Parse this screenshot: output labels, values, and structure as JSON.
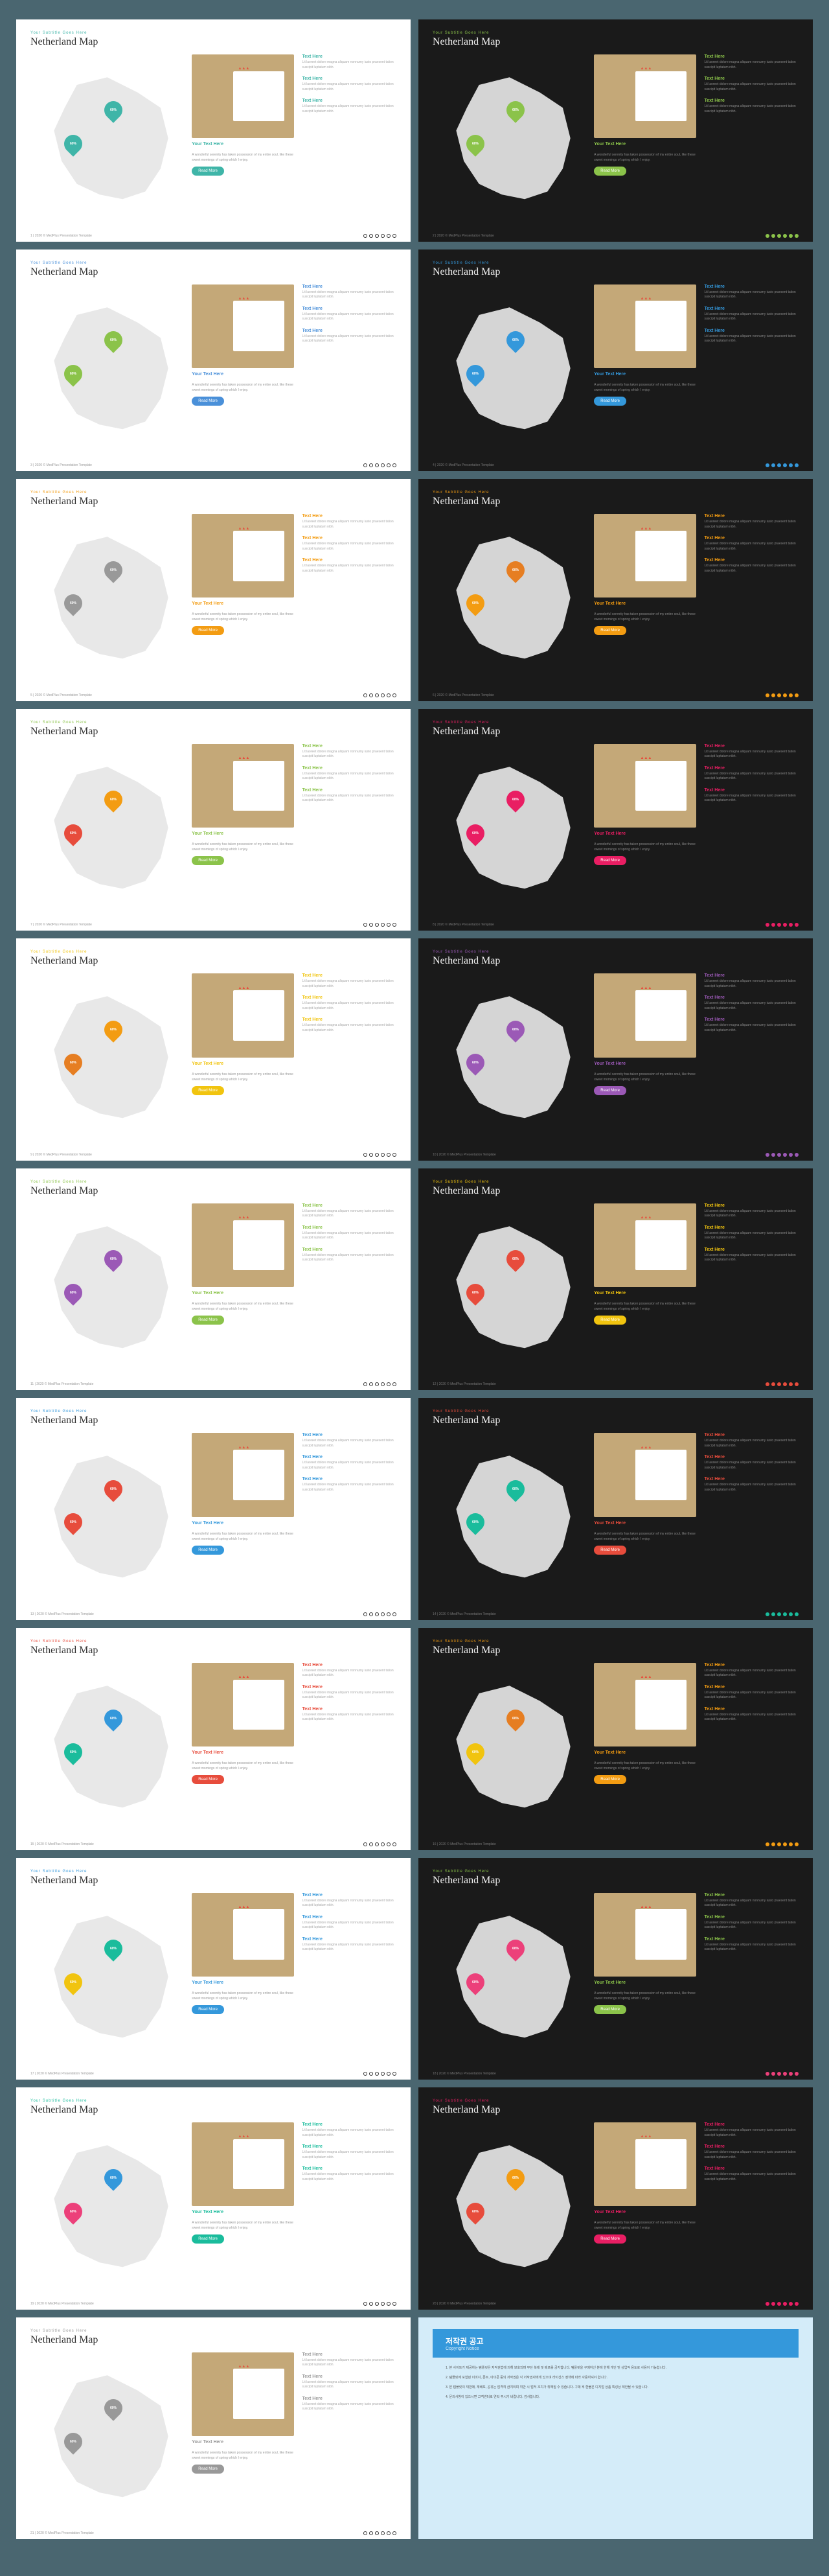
{
  "common": {
    "subtitle": "Your Subtitle Goes Here",
    "title": "Netherland Map",
    "pin_text": "60%",
    "your_text": "Your Text Here",
    "middle_desc": "A wonderful serenity has taken possession of my entire soul, like these sweet mornings of spring which I enjoy.",
    "btn_label": "Read More",
    "text_heading": "Text Here",
    "text_body": "Lit laoreet dolore magna aliquam nonnumy iusto praesent tation suscipit luptatum nibh.",
    "footer_left": "2020 © MedPlus Presentation Template"
  },
  "slides": [
    {
      "bg": "light",
      "accent": "#3fb5a8",
      "pin1": "#3fb5a8",
      "pin2": "#3fb5a8",
      "dots": "#333333"
    },
    {
      "bg": "dark",
      "accent": "#8bc34a",
      "pin1": "#8bc34a",
      "pin2": "#8bc34a",
      "dots": "#8bc34a"
    },
    {
      "bg": "light",
      "accent": "#4a90d9",
      "pin1": "#8bc34a",
      "pin2": "#8bc34a",
      "dots": "#333333"
    },
    {
      "bg": "dark",
      "accent": "#3498db",
      "pin1": "#3498db",
      "pin2": "#3498db",
      "dots": "#3498db"
    },
    {
      "bg": "light",
      "accent": "#f39c12",
      "pin1": "#999999",
      "pin2": "#999999",
      "dots": "#333333"
    },
    {
      "bg": "dark",
      "accent": "#f39c12",
      "pin1": "#f39c12",
      "pin2": "#e67e22",
      "dots": "#f39c12"
    },
    {
      "bg": "light",
      "accent": "#8bc34a",
      "pin1": "#e74c3c",
      "pin2": "#f39c12",
      "dots": "#333333"
    },
    {
      "bg": "dark",
      "accent": "#e91e63",
      "pin1": "#e91e63",
      "pin2": "#e91e63",
      "dots": "#e91e63"
    },
    {
      "bg": "light",
      "accent": "#f1c40f",
      "pin1": "#e67e22",
      "pin2": "#f39c12",
      "dots": "#333333"
    },
    {
      "bg": "dark",
      "accent": "#9b59b6",
      "pin1": "#9b59b6",
      "pin2": "#9b59b6",
      "dots": "#9b59b6"
    },
    {
      "bg": "light",
      "accent": "#8bc34a",
      "pin1": "#9b59b6",
      "pin2": "#9b59b6",
      "dots": "#333333"
    },
    {
      "bg": "dark",
      "accent": "#f1c40f",
      "pin1": "#e74c3c",
      "pin2": "#e74c3c",
      "dots": "#e74c3c"
    },
    {
      "bg": "light",
      "accent": "#3498db",
      "pin1": "#e74c3c",
      "pin2": "#e74c3c",
      "dots": "#333333"
    },
    {
      "bg": "dark",
      "accent": "#e74c3c",
      "pin1": "#1abc9c",
      "pin2": "#1abc9c",
      "dots": "#1abc9c"
    },
    {
      "bg": "light",
      "accent": "#e74c3c",
      "pin1": "#1abc9c",
      "pin2": "#3498db",
      "dots": "#333333"
    },
    {
      "bg": "dark",
      "accent": "#f39c12",
      "pin1": "#f1c40f",
      "pin2": "#e67e22",
      "dots": "#f39c12"
    },
    {
      "bg": "light",
      "accent": "#3498db",
      "pin1": "#f1c40f",
      "pin2": "#1abc9c",
      "dots": "#333333"
    },
    {
      "bg": "dark",
      "accent": "#8bc34a",
      "pin1": "#ec407a",
      "pin2": "#ec407a",
      "dots": "#ec407a"
    },
    {
      "bg": "light",
      "accent": "#1abc9c",
      "pin1": "#ec407a",
      "pin2": "#3498db",
      "dots": "#333333"
    },
    {
      "bg": "dark",
      "accent": "#e91e63",
      "pin1": "#e74c3c",
      "pin2": "#f39c12",
      "dots": "#e91e63"
    },
    {
      "bg": "light",
      "accent": "#999999",
      "pin1": "#999999",
      "pin2": "#999999",
      "dots": "#333333"
    }
  ],
  "copyright": {
    "title": "저작권 공고",
    "subtitle": "Copyright Notice",
    "paragraphs": [
      "1. 본 사이트가 제공하는 템플릿은 저작권법에 의해 보호되며 무단 복제 및 배포를 금지합니다. 템플릿을 구매하신 분에 한해 개인 및 상업적 용도로 사용이 가능합니다.",
      "2. 템플릿에 포함된 이미지, 폰트, 아이콘 등의 저작권은 각 저작권자에게 있으며 라이선스 정책에 따라 사용하셔야 합니다.",
      "3. 본 템플릿의 재판매, 재배포, 공유는 엄격히 금지되며 위반 시 법적 조치가 취해질 수 있습니다. 구매 후 환불은 디지털 상품 특성상 제한될 수 있습니다.",
      "4. 문의사항이 있으시면 고객센터로 연락 주시기 바랍니다. 감사합니다."
    ]
  }
}
